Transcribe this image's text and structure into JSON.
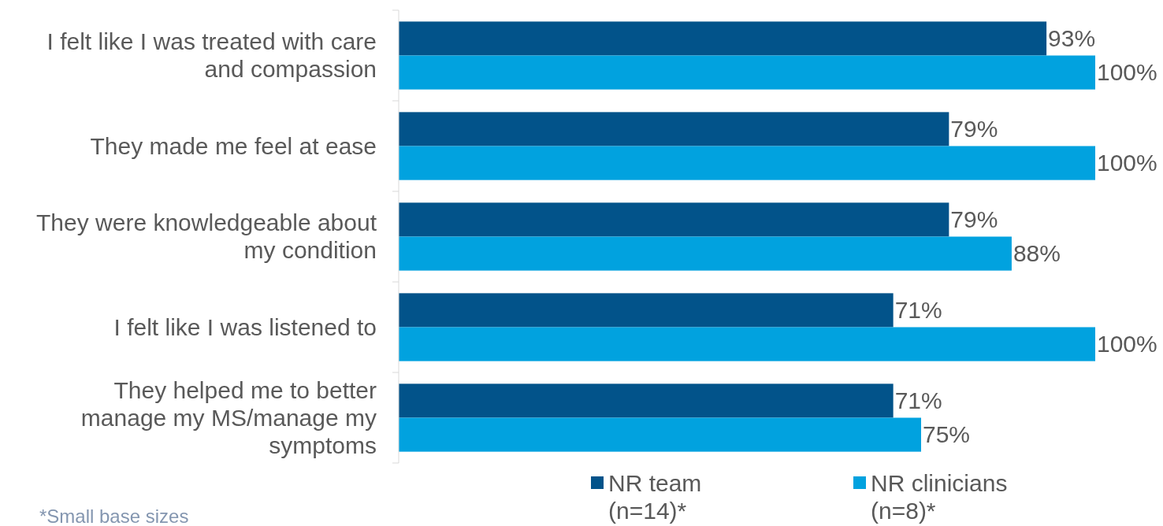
{
  "chart_data": {
    "type": "bar",
    "orientation": "horizontal",
    "categories": [
      "I felt like I was treated with care and compassion",
      "They made me feel at ease",
      "They were knowledgeable about my condition",
      "I felt like I was listened to",
      "They helped me to better manage my MS/manage my symptoms"
    ],
    "series": [
      {
        "name": "NR team (n=14)*",
        "color": "#02538a",
        "values": [
          93,
          79,
          79,
          71,
          71
        ],
        "value_labels": [
          "93%",
          "79%",
          "79%",
          "71%",
          "71%"
        ]
      },
      {
        "name": "NR clinicians (n=8)*",
        "color": "#01a2df",
        "values": [
          100,
          100,
          88,
          100,
          75
        ],
        "value_labels": [
          "100%",
          "100%",
          "88%",
          "100%",
          "75%"
        ]
      }
    ],
    "xlim": [
      0,
      100
    ],
    "tick_labels": "y",
    "legend": "bottom",
    "annotations": [
      "*Small base sizes"
    ]
  }
}
